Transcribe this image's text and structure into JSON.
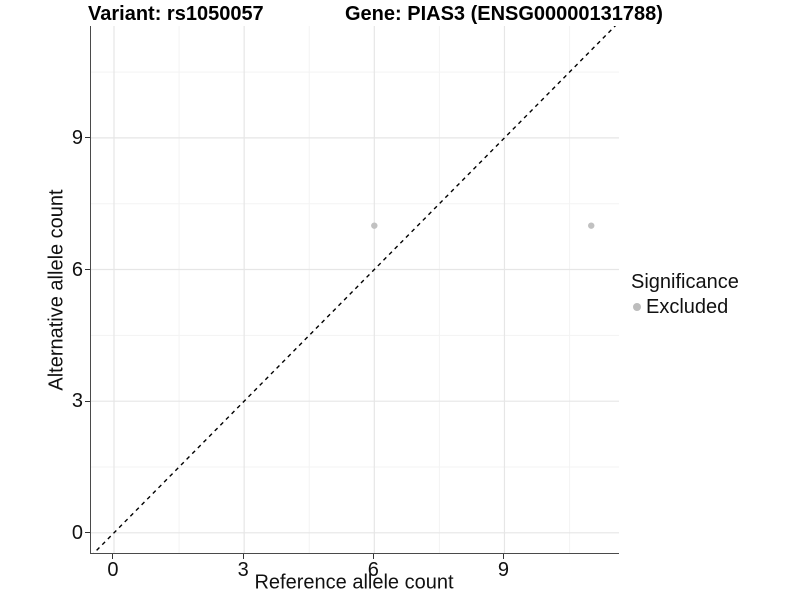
{
  "titles": {
    "left": "Variant: rs1050057",
    "right": "Gene: PIAS3 (ENSG00000131788)"
  },
  "chart_data": {
    "type": "scatter",
    "title": "Variant: rs1050057 — Gene: PIAS3 (ENSG00000131788)",
    "xlabel": "Reference allele count",
    "ylabel": "Alternative allele count",
    "xlim": [
      -0.53,
      11.64
    ],
    "ylim": [
      -0.46,
      11.55
    ],
    "x_ticks": [
      0,
      3,
      6,
      9
    ],
    "y_ticks": [
      0,
      3,
      6,
      9
    ],
    "x_minor_ticks": [
      1.5,
      4.5,
      7.5,
      10.5
    ],
    "y_minor_ticks": [
      1.5,
      4.5,
      7.5,
      10.5
    ],
    "grid": true,
    "series": [
      {
        "name": "Excluded",
        "color": "#c1c1c1",
        "points": [
          {
            "x": 6,
            "y": 7
          },
          {
            "x": 11,
            "y": 7
          }
        ]
      }
    ],
    "reference_line": {
      "slope": 1,
      "intercept": 0,
      "style": "dashed",
      "color": "#000000"
    },
    "legend": {
      "title": "Significance",
      "position": "right",
      "items": [
        {
          "label": "Excluded",
          "color": "#bdbdbd"
        }
      ]
    }
  },
  "colors": {
    "background": "#ffffff",
    "grid_major": "#e6e6e6",
    "grid_minor": "#f3f3f3",
    "axis_line": "#4a4a4a",
    "tick_mark": "#333333",
    "point": "#c1c1c1",
    "text": "#111111"
  }
}
